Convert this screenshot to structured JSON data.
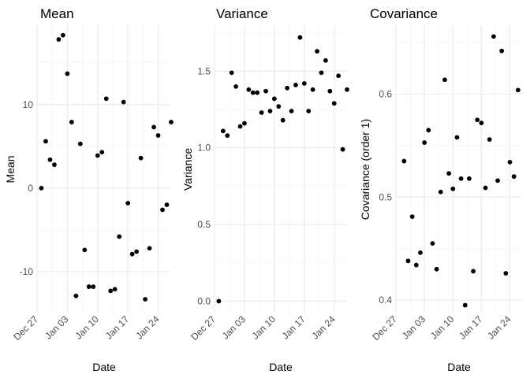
{
  "chart_data": [
    {
      "type": "scatter",
      "title": "Mean",
      "xlabel": "Date",
      "ylabel": "Mean",
      "grid": true,
      "xlim": [
        "2018-12-27",
        "2019-01-27"
      ],
      "ylim": [
        -15,
        19.5
      ],
      "x_ticks": [
        "Dec 27",
        "Jan 03",
        "Jan 10",
        "Jan 17",
        "Jan 24"
      ],
      "y_ticks": [
        -10,
        0,
        10
      ],
      "y_tick_labels": [
        "-10",
        "0",
        "10"
      ],
      "points": [
        {
          "x": "2018-12-28",
          "y": 0.0
        },
        {
          "x": "2018-12-29",
          "y": 5.6
        },
        {
          "x": "2018-12-30",
          "y": 3.4
        },
        {
          "x": "2018-12-31",
          "y": 2.8
        },
        {
          "x": "2019-01-01",
          "y": 17.8
        },
        {
          "x": "2019-01-02",
          "y": 18.3
        },
        {
          "x": "2019-01-03",
          "y": 13.7
        },
        {
          "x": "2019-01-04",
          "y": 7.9
        },
        {
          "x": "2019-01-05",
          "y": -12.9
        },
        {
          "x": "2019-01-06",
          "y": 5.3
        },
        {
          "x": "2019-01-07",
          "y": -7.4
        },
        {
          "x": "2019-01-08",
          "y": -11.8
        },
        {
          "x": "2019-01-09",
          "y": -11.8
        },
        {
          "x": "2019-01-10",
          "y": 3.9
        },
        {
          "x": "2019-01-11",
          "y": 4.3
        },
        {
          "x": "2019-01-12",
          "y": 10.7
        },
        {
          "x": "2019-01-13",
          "y": -12.3
        },
        {
          "x": "2019-01-14",
          "y": -12.1
        },
        {
          "x": "2019-01-15",
          "y": -5.8
        },
        {
          "x": "2019-01-16",
          "y": 10.3
        },
        {
          "x": "2019-01-17",
          "y": -1.8
        },
        {
          "x": "2019-01-18",
          "y": -7.9
        },
        {
          "x": "2019-01-19",
          "y": -7.6
        },
        {
          "x": "2019-01-20",
          "y": 3.6
        },
        {
          "x": "2019-01-21",
          "y": -13.3
        },
        {
          "x": "2019-01-22",
          "y": -7.2
        },
        {
          "x": "2019-01-23",
          "y": 7.3
        },
        {
          "x": "2019-01-24",
          "y": 6.3
        },
        {
          "x": "2019-01-25",
          "y": -2.6
        },
        {
          "x": "2019-01-26",
          "y": -2.0
        },
        {
          "x": "2019-01-27",
          "y": 7.9
        }
      ]
    },
    {
      "type": "scatter",
      "title": "Variance",
      "xlabel": "Date",
      "ylabel": "Variance",
      "grid": true,
      "xlim": [
        "2018-12-27",
        "2019-01-27"
      ],
      "ylim": [
        -0.08,
        1.8
      ],
      "x_ticks": [
        "Dec 27",
        "Jan 03",
        "Jan 10",
        "Jan 17",
        "Jan 24"
      ],
      "y_ticks": [
        0,
        0.5,
        1.0,
        1.5
      ],
      "y_tick_labels": [
        "0.0",
        "0.5",
        "1.0",
        "1.5"
      ],
      "points": [
        {
          "x": "2018-12-28",
          "y": 0.0
        },
        {
          "x": "2018-12-29",
          "y": 1.11
        },
        {
          "x": "2018-12-30",
          "y": 1.08
        },
        {
          "x": "2018-12-31",
          "y": 1.49
        },
        {
          "x": "2019-01-01",
          "y": 1.4
        },
        {
          "x": "2019-01-02",
          "y": 1.14
        },
        {
          "x": "2019-01-03",
          "y": 1.16
        },
        {
          "x": "2019-01-04",
          "y": 1.38
        },
        {
          "x": "2019-01-05",
          "y": 1.36
        },
        {
          "x": "2019-01-06",
          "y": 1.36
        },
        {
          "x": "2019-01-07",
          "y": 1.23
        },
        {
          "x": "2019-01-08",
          "y": 1.37
        },
        {
          "x": "2019-01-09",
          "y": 1.24
        },
        {
          "x": "2019-01-10",
          "y": 1.32
        },
        {
          "x": "2019-01-11",
          "y": 1.27
        },
        {
          "x": "2019-01-12",
          "y": 1.18
        },
        {
          "x": "2019-01-13",
          "y": 1.39
        },
        {
          "x": "2019-01-14",
          "y": 1.24
        },
        {
          "x": "2019-01-15",
          "y": 1.41
        },
        {
          "x": "2019-01-16",
          "y": 1.72
        },
        {
          "x": "2019-01-17",
          "y": 1.42
        },
        {
          "x": "2019-01-18",
          "y": 1.24
        },
        {
          "x": "2019-01-19",
          "y": 1.38
        },
        {
          "x": "2019-01-20",
          "y": 1.63
        },
        {
          "x": "2019-01-21",
          "y": 1.49
        },
        {
          "x": "2019-01-22",
          "y": 1.57
        },
        {
          "x": "2019-01-23",
          "y": 1.37
        },
        {
          "x": "2019-01-24",
          "y": 1.29
        },
        {
          "x": "2019-01-25",
          "y": 1.47
        },
        {
          "x": "2019-01-26",
          "y": 0.99
        },
        {
          "x": "2019-01-27",
          "y": 1.38
        }
      ]
    },
    {
      "type": "scatter",
      "title": "Covariance",
      "xlabel": "Date",
      "ylabel": "Covariance (order 1)",
      "grid": true,
      "xlim": [
        "2018-12-27",
        "2019-01-27"
      ],
      "ylim": [
        0.387,
        0.667
      ],
      "x_ticks": [
        "Dec 27",
        "Jan 03",
        "Jan 10",
        "Jan 17",
        "Jan 24"
      ],
      "y_ticks": [
        0.4,
        0.5,
        0.6
      ],
      "y_tick_labels": [
        "0.4",
        "0.5",
        "0.6"
      ],
      "points": [
        {
          "x": "2018-12-29",
          "y": 0.535
        },
        {
          "x": "2018-12-30",
          "y": 0.438
        },
        {
          "x": "2018-12-31",
          "y": 0.481
        },
        {
          "x": "2019-01-01",
          "y": 0.434
        },
        {
          "x": "2019-01-02",
          "y": 0.446
        },
        {
          "x": "2019-01-03",
          "y": 0.553
        },
        {
          "x": "2019-01-04",
          "y": 0.565
        },
        {
          "x": "2019-01-05",
          "y": 0.455
        },
        {
          "x": "2019-01-06",
          "y": 0.43
        },
        {
          "x": "2019-01-07",
          "y": 0.505
        },
        {
          "x": "2019-01-08",
          "y": 0.614
        },
        {
          "x": "2019-01-09",
          "y": 0.523
        },
        {
          "x": "2019-01-10",
          "y": 0.508
        },
        {
          "x": "2019-01-11",
          "y": 0.558
        },
        {
          "x": "2019-01-12",
          "y": 0.518
        },
        {
          "x": "2019-01-13",
          "y": 0.395
        },
        {
          "x": "2019-01-14",
          "y": 0.518
        },
        {
          "x": "2019-01-15",
          "y": 0.428
        },
        {
          "x": "2019-01-16",
          "y": 0.575
        },
        {
          "x": "2019-01-17",
          "y": 0.572
        },
        {
          "x": "2019-01-18",
          "y": 0.509
        },
        {
          "x": "2019-01-19",
          "y": 0.556
        },
        {
          "x": "2019-01-20",
          "y": 0.656
        },
        {
          "x": "2019-01-21",
          "y": 0.516
        },
        {
          "x": "2019-01-22",
          "y": 0.642
        },
        {
          "x": "2019-01-23",
          "y": 0.426
        },
        {
          "x": "2019-01-24",
          "y": 0.534
        },
        {
          "x": "2019-01-25",
          "y": 0.52
        },
        {
          "x": "2019-01-26",
          "y": 0.604
        }
      ]
    }
  ]
}
